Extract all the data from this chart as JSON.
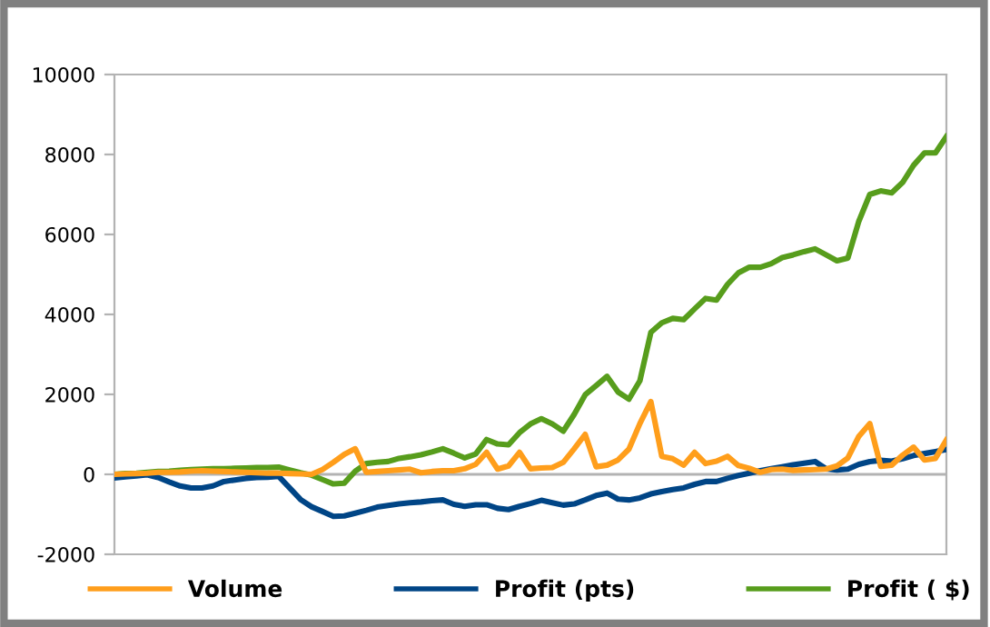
{
  "chart_data": {
    "type": "line",
    "categories": [
      null,
      null,
      null,
      null,
      null,
      null,
      null,
      null,
      null,
      null,
      null,
      null,
      null,
      null,
      null,
      null,
      null,
      null,
      null,
      null,
      null,
      null,
      null,
      null,
      null,
      null,
      null,
      null,
      null,
      null,
      null,
      null,
      null,
      null,
      null,
      null,
      null,
      null,
      null,
      null,
      null,
      null,
      null,
      null,
      null,
      null,
      null,
      null,
      null,
      null,
      null,
      null,
      null,
      null,
      null,
      null,
      null,
      null,
      null,
      null,
      null,
      null,
      null,
      null,
      null,
      null,
      null,
      null,
      null,
      null,
      null,
      null,
      null,
      null,
      null,
      null,
      null
    ],
    "series": [
      {
        "name": "Volume",
        "color": "#ff9e1b",
        "values": [
          0,
          10,
          20,
          30,
          50,
          50,
          60,
          80,
          90,
          80,
          70,
          60,
          50,
          40,
          30,
          30,
          20,
          10,
          0,
          120,
          300,
          500,
          640,
          50,
          70,
          90,
          110,
          130,
          40,
          70,
          90,
          90,
          140,
          250,
          550,
          130,
          210,
          550,
          140,
          160,
          170,
          300,
          640,
          1000,
          190,
          230,
          360,
          630,
          1270,
          1820,
          450,
          390,
          230,
          550,
          270,
          330,
          450,
          220,
          150,
          50,
          120,
          130,
          100,
          110,
          120,
          130,
          210,
          410,
          950,
          1270,
          200,
          230,
          480,
          680,
          360,
          400,
          860
        ]
      },
      {
        "name": "Profit (pts)",
        "color": "#004586",
        "values": [
          -90,
          -60,
          -40,
          -10,
          -80,
          -190,
          -290,
          -340,
          -340,
          -290,
          -180,
          -140,
          -100,
          -80,
          -70,
          -50,
          -340,
          -630,
          -810,
          -930,
          -1050,
          -1040,
          -970,
          -900,
          -820,
          -780,
          -740,
          -710,
          -690,
          -660,
          -640,
          -750,
          -800,
          -760,
          -760,
          -850,
          -880,
          -800,
          -730,
          -650,
          -710,
          -770,
          -740,
          -640,
          -530,
          -470,
          -620,
          -640,
          -590,
          -490,
          -430,
          -380,
          -340,
          -250,
          -180,
          -180,
          -100,
          -30,
          30,
          90,
          140,
          190,
          240,
          280,
          320,
          140,
          110,
          130,
          250,
          320,
          350,
          330,
          390,
          470,
          520,
          570,
          620
        ]
      },
      {
        "name": "Profit ( $)",
        "color": "#579d1c",
        "values": [
          0,
          20,
          30,
          50,
          70,
          80,
          100,
          120,
          130,
          140,
          140,
          150,
          160,
          170,
          170,
          180,
          110,
          40,
          -20,
          -130,
          -240,
          -220,
          80,
          270,
          300,
          320,
          400,
          440,
          490,
          560,
          640,
          530,
          410,
          510,
          870,
          760,
          740,
          1040,
          1260,
          1390,
          1260,
          1080,
          1500,
          1990,
          2220,
          2450,
          2060,
          1880,
          2340,
          3550,
          3790,
          3900,
          3870,
          4140,
          4400,
          4360,
          4750,
          5040,
          5180,
          5180,
          5270,
          5420,
          5490,
          5570,
          5640,
          5490,
          5340,
          5410,
          6330,
          7000,
          7090,
          7040,
          7300,
          7730,
          8040,
          8040,
          8450
        ]
      }
    ],
    "ylim": [
      -2000,
      10000
    ],
    "yticks": [
      -2000,
      0,
      2000,
      4000,
      6000,
      8000,
      10000
    ],
    "ref_lines": [
      {
        "axis": "y",
        "value": 0,
        "color": "#b3b3b3"
      }
    ],
    "legend": "bottom",
    "line_style": "solid"
  }
}
